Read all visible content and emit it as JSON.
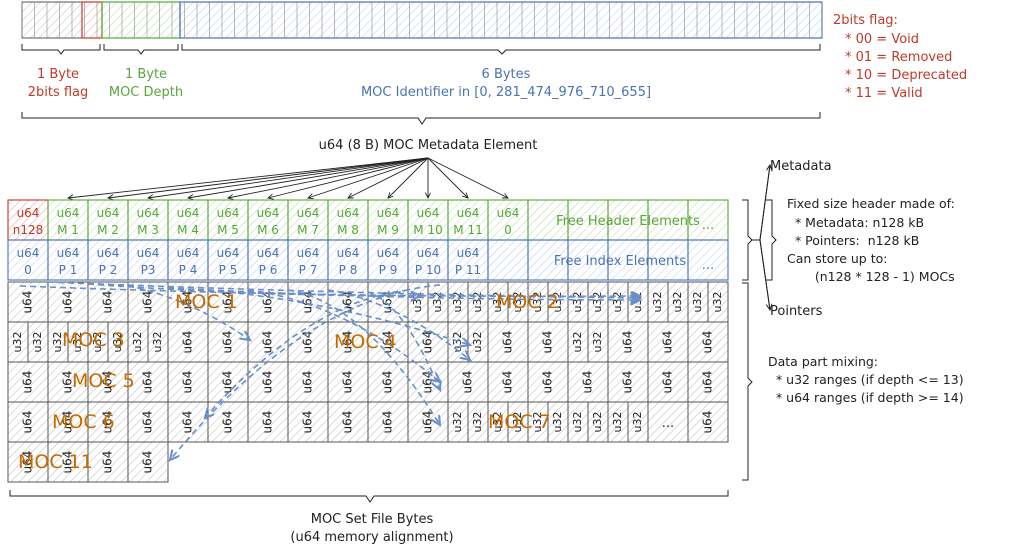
{
  "top_labels": {
    "byte1_flag_title": "1 Byte",
    "byte1_flag_sub": "2bits flag",
    "byte1_depth_title": "1 Byte",
    "byte1_depth_sub": "MOC Depth",
    "bytes6_title": "6 Bytes",
    "bytes6_sub": "MOC Identifier in [0, 281_474_976_710_655]",
    "element_caption": "u64 (8 B) MOC Metadata Element"
  },
  "flag_legend": {
    "title": "2bits flag:",
    "items": [
      "* 00 = Void",
      "* 01 = Removed",
      "* 10 = Deprecated",
      "* 11 = Valid"
    ]
  },
  "metadata_row": {
    "first": [
      "u64",
      "n128"
    ],
    "cells": [
      [
        "u64",
        "M 1"
      ],
      [
        "u64",
        "M 2"
      ],
      [
        "u64",
        "M 3"
      ],
      [
        "u64",
        "M 4"
      ],
      [
        "u64",
        "M 5"
      ],
      [
        "u64",
        "M 6"
      ],
      [
        "u64",
        "M 7"
      ],
      [
        "u64",
        "M 8"
      ],
      [
        "u64",
        "M 9"
      ],
      [
        "u64",
        "M 10"
      ],
      [
        "u64",
        "M 11"
      ],
      [
        "u64",
        "0"
      ]
    ],
    "free_label": "Free Header Elements",
    "ellipsis": "..."
  },
  "pointer_row": {
    "cells": [
      [
        "u64",
        "0"
      ],
      [
        "u64",
        "P 1"
      ],
      [
        "u64",
        "P 2"
      ],
      [
        "u64",
        "P3"
      ],
      [
        "u64",
        "P 4"
      ],
      [
        "u64",
        "P 5"
      ],
      [
        "u64",
        "P 6"
      ],
      [
        "u64",
        "P 7"
      ],
      [
        "u64",
        "P 8"
      ],
      [
        "u64",
        "P 9"
      ],
      [
        "u64",
        "P 10"
      ],
      [
        "u64",
        "P 11"
      ]
    ],
    "free_label": "Free Index Elements",
    "ellipsis": "..."
  },
  "data_cells": {
    "u64": "u64",
    "u32": "u32",
    "ellipsis": "..."
  },
  "moc_labels": [
    "MOC 1",
    "MOC 2",
    "MOC 3",
    "MOC 4",
    "MOC 5",
    "MOC 6",
    "MOC 7",
    "MOC 11"
  ],
  "right_annotations": {
    "metadata": "Metadata",
    "pointers": "Pointers",
    "header_lines": [
      "Fixed size header made of:",
      "  * Metadata: n128 kB",
      "  * Pointers:  n128 kB",
      "Can store up to:",
      "       (n128 * 128 - 1) MOCs"
    ],
    "data_lines": [
      "Data part mixing:",
      "  * u32 ranges (if depth <= 13)",
      "  * u64 ranges (if depth >= 14)"
    ]
  },
  "bottom_caption": [
    "MOC Set File Bytes",
    "(u64 memory alignment)"
  ],
  "colors": {
    "red": "#c0392b",
    "green": "#5aa63c",
    "blue": "#4a72b6",
    "orange": "#c46a00",
    "grid": "#555555",
    "arrow_blue": "#6a8fc9"
  }
}
